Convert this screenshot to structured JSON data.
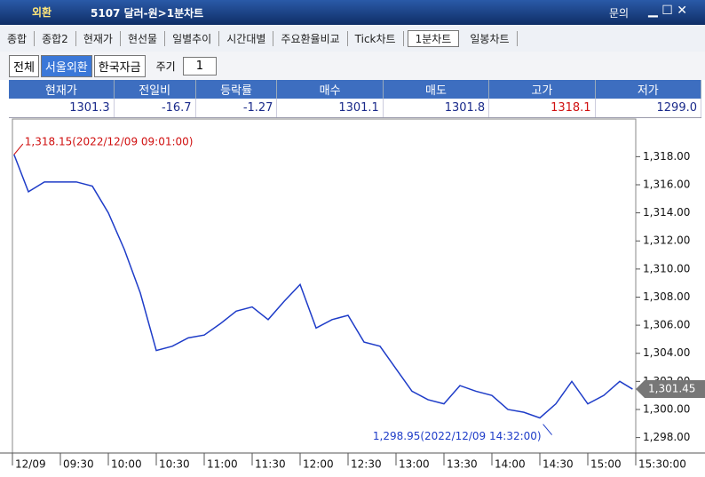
{
  "window": {
    "badge": "외환",
    "title": "5107 달러-원>1분차트",
    "help": "문의"
  },
  "tabs": {
    "items": [
      "종합",
      "종합2",
      "현재가",
      "현선물",
      "일별추이",
      "시간대별",
      "주요환율비교",
      "Tick차트",
      "1분차트",
      "일봉차트"
    ],
    "active": 8
  },
  "toolbar": {
    "buttons": [
      "전체",
      "서울외환",
      "한국자금"
    ],
    "active": 1,
    "period_label": "주기",
    "period_value": "1"
  },
  "quote": {
    "headers": [
      "현재가",
      "전일비",
      "등락률",
      "매수",
      "매도",
      "고가",
      "저가"
    ],
    "values": [
      "1301.3",
      "-16.7",
      "-1.27",
      "1301.1",
      "1301.8",
      "1318.1",
      "1299.0"
    ],
    "highlight": 5
  },
  "chart_data": {
    "type": "line",
    "color": "#1e3cc8",
    "x": [
      "09:01",
      "09:10",
      "09:20",
      "09:30",
      "09:40",
      "09:50",
      "10:00",
      "10:10",
      "10:20",
      "10:30",
      "10:40",
      "10:50",
      "11:00",
      "11:10",
      "11:20",
      "11:30",
      "11:40",
      "11:50",
      "12:00",
      "12:10",
      "12:20",
      "12:30",
      "12:40",
      "12:50",
      "13:00",
      "13:10",
      "13:20",
      "13:30",
      "13:40",
      "13:50",
      "14:00",
      "14:10",
      "14:20",
      "14:30",
      "14:40",
      "14:50",
      "15:00",
      "15:10",
      "15:20",
      "15:28"
    ],
    "values": [
      1318.15,
      1315.5,
      1316.2,
      1316.2,
      1316.2,
      1315.9,
      1314.0,
      1311.4,
      1308.3,
      1304.2,
      1304.5,
      1305.1,
      1305.3,
      1306.1,
      1307.0,
      1307.3,
      1306.4,
      1307.7,
      1308.9,
      1305.8,
      1306.4,
      1306.7,
      1304.8,
      1304.5,
      1302.9,
      1301.3,
      1300.7,
      1300.4,
      1301.7,
      1301.3,
      1301.0,
      1300.0,
      1299.8,
      1299.4,
      1300.4,
      1302.0,
      1300.4,
      1301.0,
      1302.0,
      1301.45
    ],
    "xlim": [
      "09:00",
      "15:30"
    ],
    "xticks": [
      {
        "value": "09:00",
        "label": "12/09"
      },
      "09:30",
      "10:00",
      "10:30",
      "11:00",
      "11:30",
      "12:00",
      "12:30",
      "13:00",
      "13:30",
      "14:00",
      "14:30",
      "15:00",
      {
        "value": "15:30",
        "label": "15:30:00"
      }
    ],
    "ylim": [
      1296.9,
      1320.3
    ],
    "yticks": [
      {
        "value": 1298,
        "label": "1,298.00"
      },
      {
        "value": 1300,
        "label": "1,300.00"
      },
      {
        "value": 1302,
        "label": "1,302.00"
      },
      {
        "value": 1304,
        "label": "1,304.00"
      },
      {
        "value": 1306,
        "label": "1,306.00"
      },
      {
        "value": 1308,
        "label": "1,308.00"
      },
      {
        "value": 1310,
        "label": "1,310.00"
      },
      {
        "value": 1312,
        "label": "1,312.00"
      },
      {
        "value": 1314,
        "label": "1,314.00"
      },
      {
        "value": 1316,
        "label": "1,316.00"
      },
      {
        "value": 1318,
        "label": "1,318.00"
      }
    ],
    "grid": false,
    "annotations": [
      {
        "text": "1,318.15(2022/12/09 09:01:00)",
        "x": "09:01",
        "y": 1318.15,
        "color": "#d01010"
      },
      {
        "text": "1,298.95(2022/12/09 14:32:00)",
        "x": "14:32",
        "y": 1298.95,
        "color": "#1e3cc8"
      }
    ],
    "last_value": {
      "value": 1301.45,
      "label": "1,301.45"
    }
  }
}
